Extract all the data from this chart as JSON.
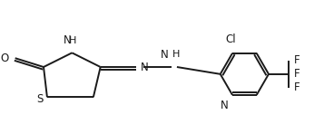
{
  "background_color": "#ffffff",
  "line_color": "#1a1a1a",
  "text_color": "#1a1a1a",
  "line_width": 1.4,
  "font_size": 8.5,
  "figsize": [
    3.68,
    1.48
  ],
  "dpi": 100,
  "xlim": [
    0,
    9.2
  ],
  "ylim": [
    0,
    3.7
  ]
}
